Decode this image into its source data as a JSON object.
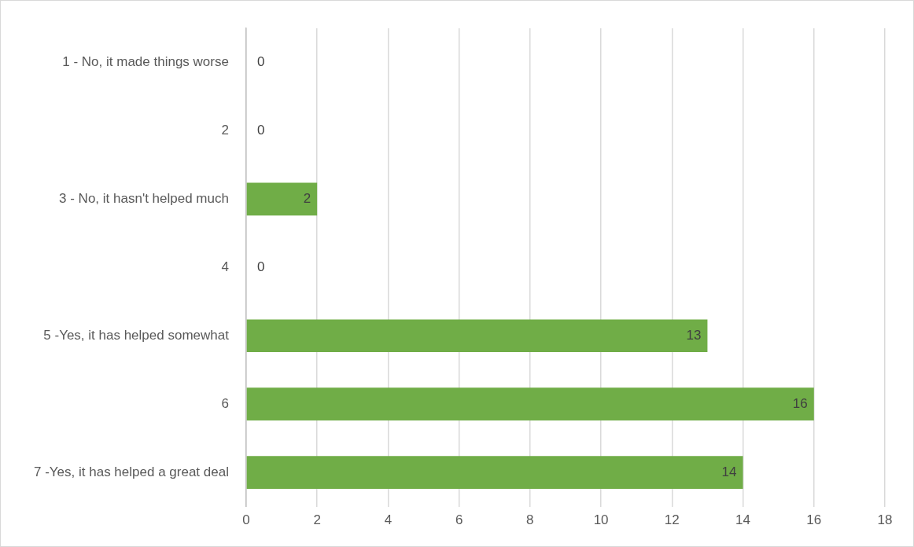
{
  "chart_data": {
    "type": "bar",
    "orientation": "horizontal",
    "categories": [
      "1 - No, it made things worse",
      "2",
      "3 - No, it hasn't helped much",
      "4",
      "5 -Yes, it has helped somewhat",
      "6",
      "7 -Yes, it has helped a great deal"
    ],
    "values": [
      0,
      0,
      2,
      0,
      13,
      16,
      14
    ],
    "color": "#70ad47",
    "xlim": [
      0,
      18
    ],
    "xticks": [
      0,
      2,
      4,
      6,
      8,
      10,
      12,
      14,
      16,
      18
    ],
    "grid": "x",
    "data_labels": true,
    "legend": false
  }
}
